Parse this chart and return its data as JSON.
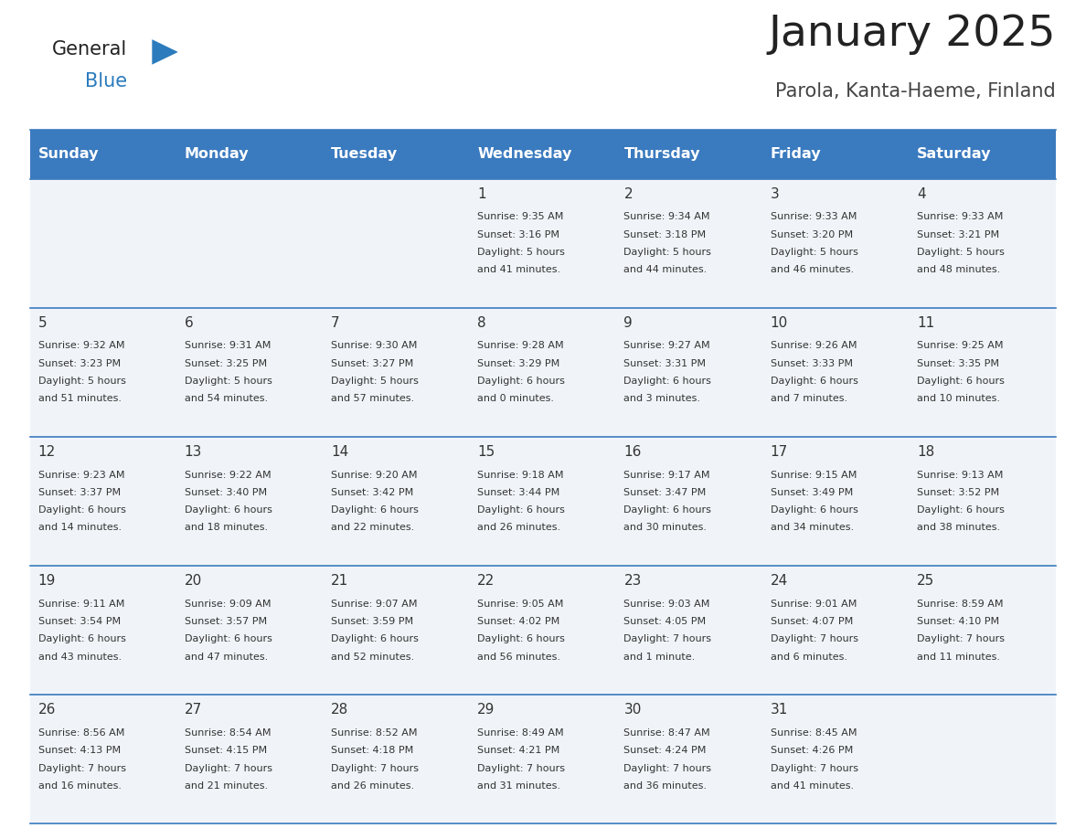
{
  "title": "January 2025",
  "subtitle": "Parola, Kanta-Haeme, Finland",
  "days_of_week": [
    "Sunday",
    "Monday",
    "Tuesday",
    "Wednesday",
    "Thursday",
    "Friday",
    "Saturday"
  ],
  "header_bg": "#3a7abf",
  "header_text": "#ffffff",
  "row_bg": "#f0f4f8",
  "border_color": "#3a7abf",
  "text_color": "#333333",
  "day_number_color": "#333333",
  "logo_black": "#222222",
  "logo_blue": "#2b7bbd",
  "title_color": "#222222",
  "subtitle_color": "#444444",
  "calendar_data": [
    [
      null,
      null,
      null,
      {
        "day": 1,
        "sunrise": "9:35 AM",
        "sunset": "3:16 PM",
        "daylight": "5 hours",
        "daylight2": "and 41 minutes."
      },
      {
        "day": 2,
        "sunrise": "9:34 AM",
        "sunset": "3:18 PM",
        "daylight": "5 hours",
        "daylight2": "and 44 minutes."
      },
      {
        "day": 3,
        "sunrise": "9:33 AM",
        "sunset": "3:20 PM",
        "daylight": "5 hours",
        "daylight2": "and 46 minutes."
      },
      {
        "day": 4,
        "sunrise": "9:33 AM",
        "sunset": "3:21 PM",
        "daylight": "5 hours",
        "daylight2": "and 48 minutes."
      }
    ],
    [
      {
        "day": 5,
        "sunrise": "9:32 AM",
        "sunset": "3:23 PM",
        "daylight": "5 hours",
        "daylight2": "and 51 minutes."
      },
      {
        "day": 6,
        "sunrise": "9:31 AM",
        "sunset": "3:25 PM",
        "daylight": "5 hours",
        "daylight2": "and 54 minutes."
      },
      {
        "day": 7,
        "sunrise": "9:30 AM",
        "sunset": "3:27 PM",
        "daylight": "5 hours",
        "daylight2": "and 57 minutes."
      },
      {
        "day": 8,
        "sunrise": "9:28 AM",
        "sunset": "3:29 PM",
        "daylight": "6 hours",
        "daylight2": "and 0 minutes."
      },
      {
        "day": 9,
        "sunrise": "9:27 AM",
        "sunset": "3:31 PM",
        "daylight": "6 hours",
        "daylight2": "and 3 minutes."
      },
      {
        "day": 10,
        "sunrise": "9:26 AM",
        "sunset": "3:33 PM",
        "daylight": "6 hours",
        "daylight2": "and 7 minutes."
      },
      {
        "day": 11,
        "sunrise": "9:25 AM",
        "sunset": "3:35 PM",
        "daylight": "6 hours",
        "daylight2": "and 10 minutes."
      }
    ],
    [
      {
        "day": 12,
        "sunrise": "9:23 AM",
        "sunset": "3:37 PM",
        "daylight": "6 hours",
        "daylight2": "and 14 minutes."
      },
      {
        "day": 13,
        "sunrise": "9:22 AM",
        "sunset": "3:40 PM",
        "daylight": "6 hours",
        "daylight2": "and 18 minutes."
      },
      {
        "day": 14,
        "sunrise": "9:20 AM",
        "sunset": "3:42 PM",
        "daylight": "6 hours",
        "daylight2": "and 22 minutes."
      },
      {
        "day": 15,
        "sunrise": "9:18 AM",
        "sunset": "3:44 PM",
        "daylight": "6 hours",
        "daylight2": "and 26 minutes."
      },
      {
        "day": 16,
        "sunrise": "9:17 AM",
        "sunset": "3:47 PM",
        "daylight": "6 hours",
        "daylight2": "and 30 minutes."
      },
      {
        "day": 17,
        "sunrise": "9:15 AM",
        "sunset": "3:49 PM",
        "daylight": "6 hours",
        "daylight2": "and 34 minutes."
      },
      {
        "day": 18,
        "sunrise": "9:13 AM",
        "sunset": "3:52 PM",
        "daylight": "6 hours",
        "daylight2": "and 38 minutes."
      }
    ],
    [
      {
        "day": 19,
        "sunrise": "9:11 AM",
        "sunset": "3:54 PM",
        "daylight": "6 hours",
        "daylight2": "and 43 minutes."
      },
      {
        "day": 20,
        "sunrise": "9:09 AM",
        "sunset": "3:57 PM",
        "daylight": "6 hours",
        "daylight2": "and 47 minutes."
      },
      {
        "day": 21,
        "sunrise": "9:07 AM",
        "sunset": "3:59 PM",
        "daylight": "6 hours",
        "daylight2": "and 52 minutes."
      },
      {
        "day": 22,
        "sunrise": "9:05 AM",
        "sunset": "4:02 PM",
        "daylight": "6 hours",
        "daylight2": "and 56 minutes."
      },
      {
        "day": 23,
        "sunrise": "9:03 AM",
        "sunset": "4:05 PM",
        "daylight": "7 hours",
        "daylight2": "and 1 minute."
      },
      {
        "day": 24,
        "sunrise": "9:01 AM",
        "sunset": "4:07 PM",
        "daylight": "7 hours",
        "daylight2": "and 6 minutes."
      },
      {
        "day": 25,
        "sunrise": "8:59 AM",
        "sunset": "4:10 PM",
        "daylight": "7 hours",
        "daylight2": "and 11 minutes."
      }
    ],
    [
      {
        "day": 26,
        "sunrise": "8:56 AM",
        "sunset": "4:13 PM",
        "daylight": "7 hours",
        "daylight2": "and 16 minutes."
      },
      {
        "day": 27,
        "sunrise": "8:54 AM",
        "sunset": "4:15 PM",
        "daylight": "7 hours",
        "daylight2": "and 21 minutes."
      },
      {
        "day": 28,
        "sunrise": "8:52 AM",
        "sunset": "4:18 PM",
        "daylight": "7 hours",
        "daylight2": "and 26 minutes."
      },
      {
        "day": 29,
        "sunrise": "8:49 AM",
        "sunset": "4:21 PM",
        "daylight": "7 hours",
        "daylight2": "and 31 minutes."
      },
      {
        "day": 30,
        "sunrise": "8:47 AM",
        "sunset": "4:24 PM",
        "daylight": "7 hours",
        "daylight2": "and 36 minutes."
      },
      {
        "day": 31,
        "sunrise": "8:45 AM",
        "sunset": "4:26 PM",
        "daylight": "7 hours",
        "daylight2": "and 41 minutes."
      },
      null
    ]
  ]
}
